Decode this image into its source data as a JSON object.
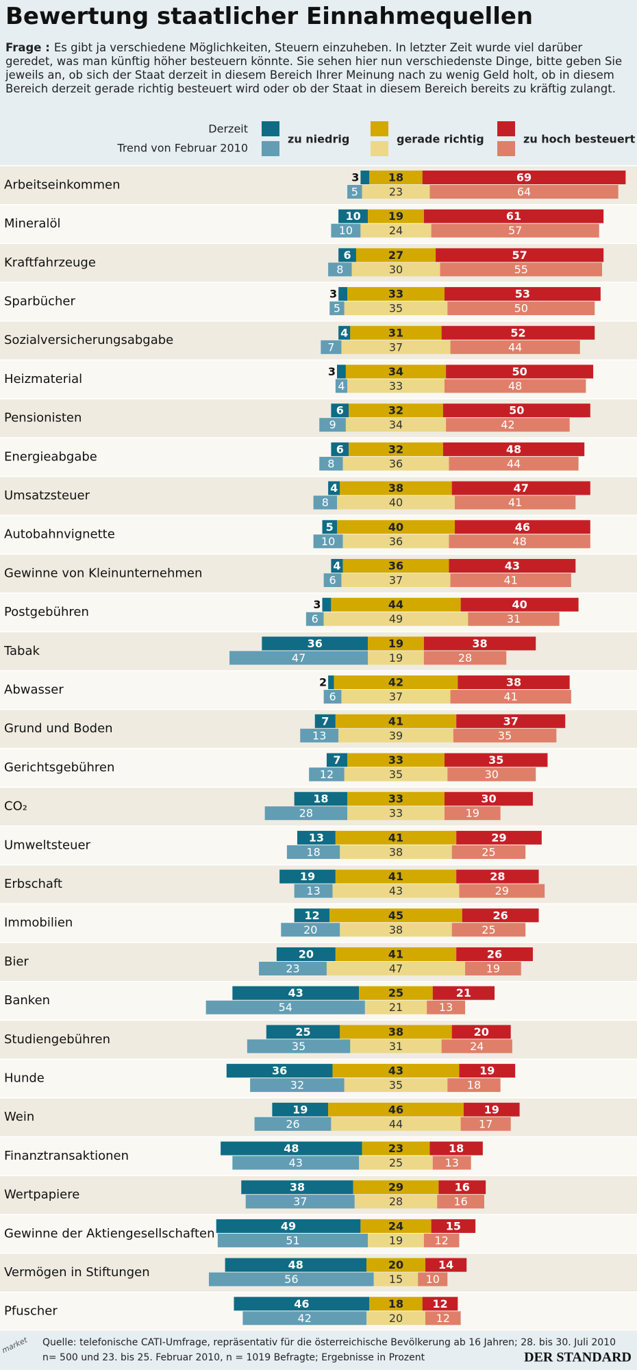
{
  "chart_data": {
    "type": "diverging_bar",
    "title": "Bewertung staatlicher Einnahmequellen",
    "question_label": "Frage :",
    "question": "Es gibt ja verschiedene Möglichkeiten, Steuern einzuheben. In letzter Zeit wurde viel darüber geredet, was man künftig höher besteuern könnte. Sie sehen hier nun verschiedenste Dinge, bitte geben Sie jeweils an, ob sich der Staat derzeit in diesem Bereich Ihrer Meinung nach zu wenig Geld holt, ob in diesem Bereich derzeit gerade richtig besteuert wird oder ob der Staat in diesem Bereich bereits zu kräftig zulangt.",
    "periods": [
      "Derzeit",
      "Trend von Februar 2010"
    ],
    "categories": [
      "Arbeitseinkommen",
      "Mineralöl",
      "Kraftfahrzeuge",
      "Sparbücher",
      "Sozialversicherungsabgabe",
      "Heizmaterial",
      "Pensionisten",
      "Energieabgabe",
      "Umsatzsteuer",
      "Autobahnvignette",
      "Gewinne von Kleinunternehmen",
      "Postgebühren",
      "Tabak",
      "Abwasser",
      "Grund und Boden",
      "Gerichtsgebühren",
      "CO₂",
      "Umweltsteuer",
      "Erbschaft",
      "Immobilien",
      "Bier",
      "Banken",
      "Studiengebühren",
      "Hunde",
      "Wein",
      "Finanztransaktionen",
      "Wertpapiere",
      "Gewinne der Aktiengesellschaften",
      "Vermögen in Stiftungen",
      "Pfuscher"
    ],
    "series": [
      {
        "name": "zu niedrig",
        "colors": [
          "#0f6c84",
          "#629db4"
        ],
        "values": [
          3,
          10,
          6,
          3,
          4,
          3,
          6,
          6,
          4,
          5,
          4,
          3,
          36,
          2,
          7,
          7,
          18,
          13,
          19,
          12,
          20,
          43,
          25,
          36,
          19,
          48,
          38,
          49,
          48,
          46
        ],
        "trend_values": [
          5,
          10,
          8,
          5,
          7,
          4,
          9,
          8,
          8,
          10,
          6,
          6,
          47,
          6,
          13,
          12,
          28,
          18,
          13,
          20,
          23,
          54,
          35,
          32,
          26,
          43,
          37,
          51,
          56,
          42
        ]
      },
      {
        "name": "gerade richtig",
        "colors": [
          "#d3a900",
          "#ecd888"
        ],
        "values": [
          18,
          19,
          27,
          33,
          31,
          34,
          32,
          32,
          38,
          40,
          36,
          44,
          19,
          42,
          41,
          33,
          33,
          41,
          41,
          45,
          41,
          25,
          38,
          43,
          46,
          23,
          29,
          24,
          20,
          18
        ],
        "trend_values": [
          23,
          24,
          30,
          35,
          37,
          33,
          34,
          36,
          40,
          36,
          37,
          49,
          19,
          37,
          39,
          35,
          33,
          38,
          43,
          38,
          47,
          21,
          31,
          35,
          44,
          25,
          28,
          19,
          15,
          20
        ]
      },
      {
        "name": "zu hoch besteuert",
        "colors": [
          "#c51f26",
          "#df7f69"
        ],
        "values": [
          69,
          61,
          57,
          53,
          52,
          50,
          50,
          48,
          47,
          46,
          43,
          40,
          38,
          38,
          37,
          35,
          30,
          29,
          28,
          26,
          26,
          21,
          20,
          19,
          19,
          18,
          16,
          15,
          14,
          12
        ],
        "trend_values": [
          64,
          57,
          55,
          50,
          44,
          48,
          42,
          44,
          41,
          48,
          41,
          31,
          28,
          41,
          35,
          30,
          19,
          25,
          29,
          25,
          19,
          13,
          24,
          18,
          17,
          13,
          16,
          12,
          10,
          12
        ]
      }
    ],
    "logo": "market",
    "source": [
      "Quelle: telefonische CATI-Umfrage, repräsentativ für die österreichische Bevölkerung  ab 16 Jahren; 28. bis 30. Juli 2010",
      "n= 500 und 23. bis 25. Februar 2010, n = 1019 Befragte; Ergebnisse in Prozent"
    ],
    "publisher": "DER STANDARD"
  }
}
